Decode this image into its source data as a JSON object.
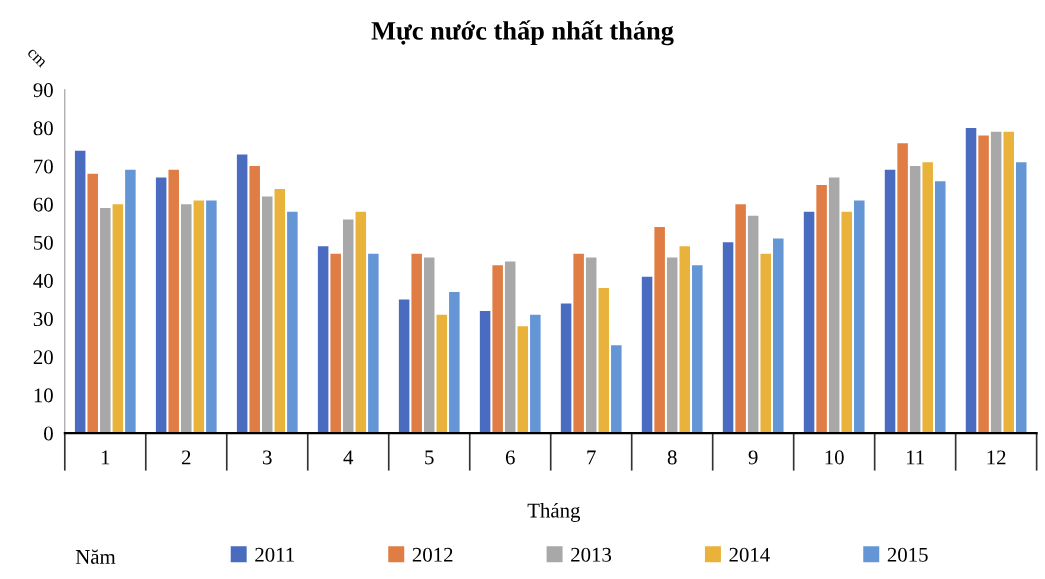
{
  "chart_data": {
    "type": "bar",
    "title": "Mực nước thấp nhất tháng",
    "xlabel": "Tháng",
    "ylabel": "cm",
    "legend_title": "Năm",
    "legend": "bottom",
    "categories": [
      "1",
      "2",
      "3",
      "4",
      "5",
      "6",
      "7",
      "8",
      "9",
      "10",
      "11",
      "12"
    ],
    "ylim": [
      0,
      90
    ],
    "yticks": [
      0,
      10,
      20,
      30,
      40,
      50,
      60,
      70,
      80,
      90
    ],
    "series": [
      {
        "name": "2011",
        "color": "#4a6cc0",
        "values": [
          74,
          67,
          73,
          49,
          35,
          32,
          34,
          41,
          50,
          58,
          69,
          80
        ]
      },
      {
        "name": "2012",
        "color": "#e07d45",
        "values": [
          68,
          69,
          70,
          47,
          47,
          44,
          47,
          54,
          60,
          65,
          76,
          78
        ]
      },
      {
        "name": "2013",
        "color": "#a8a8a8",
        "values": [
          59,
          60,
          62,
          56,
          46,
          45,
          46,
          46,
          57,
          67,
          70,
          79
        ]
      },
      {
        "name": "2014",
        "color": "#e9b23a",
        "values": [
          60,
          61,
          64,
          58,
          31,
          28,
          38,
          49,
          47,
          58,
          71,
          79
        ]
      },
      {
        "name": "2015",
        "color": "#6496d6",
        "values": [
          69,
          61,
          58,
          47,
          37,
          31,
          23,
          44,
          51,
          61,
          66,
          71
        ]
      }
    ]
  }
}
